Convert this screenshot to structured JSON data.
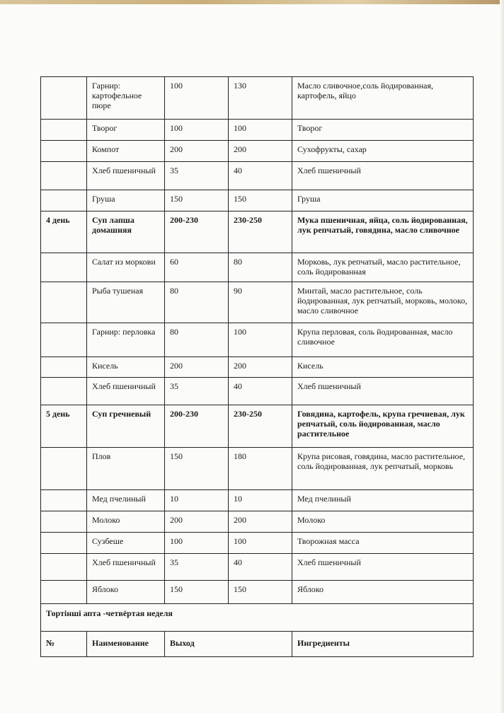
{
  "rows": [
    {
      "day": "",
      "name": "Гарнир: картофельное пюре",
      "out1": "100",
      "out2": "130",
      "ingredients": "Масло сливочное,соль йодированная, картофель, яйцо",
      "bold": false,
      "h": 60
    },
    {
      "day": "",
      "name": "Творог",
      "out1": "100",
      "out2": "100",
      "ingredients": "Творог",
      "bold": false,
      "h": 30
    },
    {
      "day": "",
      "name": "Компот",
      "out1": "200",
      "out2": "200",
      "ingredients": "Сухофрукты, сахар",
      "bold": false,
      "h": 30
    },
    {
      "day": "",
      "name": "Хлеб пшеничный",
      "out1": "35",
      "out2": "40",
      "ingredients": "Хлеб пшеничный",
      "bold": false,
      "h": 40
    },
    {
      "day": "",
      "name": "Груша",
      "out1": "150",
      "out2": "150",
      "ingredients": "Груша",
      "bold": false,
      "h": 30
    },
    {
      "day": "4 день",
      "name": "Суп лапша домашняя",
      "out1": "200-230",
      "out2": "230-250",
      "ingredients": "Мука пшеничная, яйца, соль йодированная, лук репчатый, говядина, масло сливочное",
      "bold": true,
      "h": 59
    },
    {
      "day": "",
      "name": "Салат из моркови",
      "out1": "60",
      "out2": "80",
      "ingredients": "Морковь, лук репчатый, масло растительное, соль йодированная",
      "bold": false,
      "h": 41
    },
    {
      "day": "",
      "name": "Рыба тушеная",
      "out1": "80",
      "out2": "90",
      "ingredients": "Минтай, масло растительное, соль йодированная, лук репчатый, морковь, молоко, масло сливочное",
      "bold": false,
      "h": 58
    },
    {
      "day": "",
      "name": "Гарнир: перловка",
      "out1": "80",
      "out2": "100",
      "ingredients": "Крупа перловая, соль йодированная, масло сливочное",
      "bold": false,
      "h": 48
    },
    {
      "day": "",
      "name": "Кисель",
      "out1": "200",
      "out2": "200",
      "ingredients": "Кисель",
      "bold": false,
      "h": 29
    },
    {
      "day": "",
      "name": "Хлеб пшеничный",
      "out1": "35",
      "out2": "40",
      "ingredients": "Хлеб пшеничный",
      "bold": false,
      "h": 39
    },
    {
      "day": "5 день",
      "name": "Суп гречневый",
      "out1": "200-230",
      "out2": "230-250",
      "ingredients": "Говядина, картофель, крупа гречневая, лук репчатый, соль йодированная, масло растительное",
      "bold": true,
      "h": 60
    },
    {
      "day": "",
      "name": "Плов",
      "out1": "150",
      "out2": "180",
      "ingredients": "Крупа рисовая, говядина, масло растительное, соль йодированная, лук репчатый, морковь",
      "bold": false,
      "h": 60
    },
    {
      "day": "",
      "name": "Мед пчелиный",
      "out1": "10",
      "out2": "10",
      "ingredients": "Мед пчелиный",
      "bold": false,
      "h": 30
    },
    {
      "day": "",
      "name": "Молоко",
      "out1": "200",
      "out2": "200",
      "ingredients": "Молоко",
      "bold": false,
      "h": 30
    },
    {
      "day": "",
      "name": "Сузбеше",
      "out1": "100",
      "out2": "100",
      "ingredients": "Творожная масса",
      "bold": false,
      "h": 30
    },
    {
      "day": "",
      "name": "Хлеб пшеничный",
      "out1": "35",
      "out2": "40",
      "ingredients": "Хлеб пшеничный",
      "bold": false,
      "h": 38
    },
    {
      "day": "",
      "name": "Яблоко",
      "out1": "150",
      "out2": "150",
      "ingredients": "Яблоко",
      "bold": false,
      "h": 33
    }
  ],
  "week_title": "Тортінші апта -четвёртая неделя",
  "header": {
    "num": "№",
    "name": "Наименование",
    "output": "Выход",
    "ingredients": "Ингредиенты"
  }
}
